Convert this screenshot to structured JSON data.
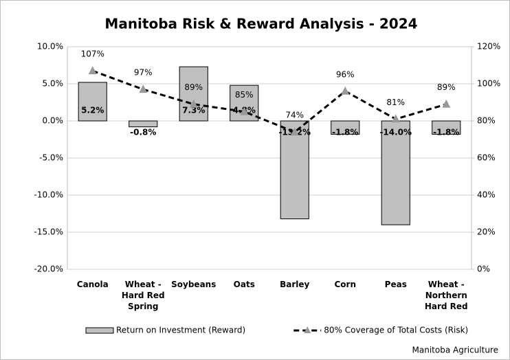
{
  "chart_data": {
    "type": "bar_line",
    "title": "Manitoba Risk & Reward Analysis - 2024",
    "categories": [
      [
        "Canola"
      ],
      [
        "Wheat -",
        "Hard Red",
        "Spring"
      ],
      [
        "Soybeans"
      ],
      [
        "Oats"
      ],
      [
        "Barley"
      ],
      [
        "Corn"
      ],
      [
        "Peas"
      ],
      [
        "Wheat -",
        "Northern",
        "Hard Red"
      ]
    ],
    "series": [
      {
        "name": "Return on Investment (Reward)",
        "type": "bar",
        "color": "#c0c0c0",
        "values": [
          5.2,
          -0.8,
          7.3,
          4.8,
          -13.2,
          -1.8,
          -14.0,
          -1.8
        ],
        "value_labels": [
          "5.2%",
          "-0.8%",
          "7.3%",
          "4.8%",
          "-13.2%",
          "-1.8%",
          "-14.0%",
          "-1.8%"
        ]
      },
      {
        "name": "80% Coverage of Total Costs (Risk)",
        "type": "line",
        "axis": "y2",
        "color": "#000000",
        "marker_color": "#999999",
        "values": [
          107,
          97,
          89,
          85,
          74,
          96,
          81,
          89
        ],
        "value_labels": [
          "107%",
          "97%",
          "89%",
          "85%",
          "74%",
          "96%",
          "81%",
          "89%"
        ]
      }
    ],
    "ylim": [
      -20,
      10
    ],
    "yticks": [
      {
        "value": 10,
        "label": "10.0%"
      },
      {
        "value": 5,
        "label": "5.0%"
      },
      {
        "value": 0,
        "label": "0.0%"
      },
      {
        "value": -5,
        "label": "-5.0%"
      },
      {
        "value": -10,
        "label": "-10.0%"
      },
      {
        "value": -15,
        "label": "-15.0%"
      },
      {
        "value": -20,
        "label": "-20.0%"
      }
    ],
    "y2lim": [
      0,
      120
    ],
    "y2ticks": [
      {
        "value": 120,
        "label": "120%"
      },
      {
        "value": 100,
        "label": "100%"
      },
      {
        "value": 80,
        "label": "80%"
      },
      {
        "value": 60,
        "label": "60%"
      },
      {
        "value": 40,
        "label": "40%"
      },
      {
        "value": 20,
        "label": "20%"
      },
      {
        "value": 0,
        "label": "0%"
      }
    ],
    "grid": true,
    "legend": "bottom",
    "source": "Manitoba Agriculture"
  }
}
